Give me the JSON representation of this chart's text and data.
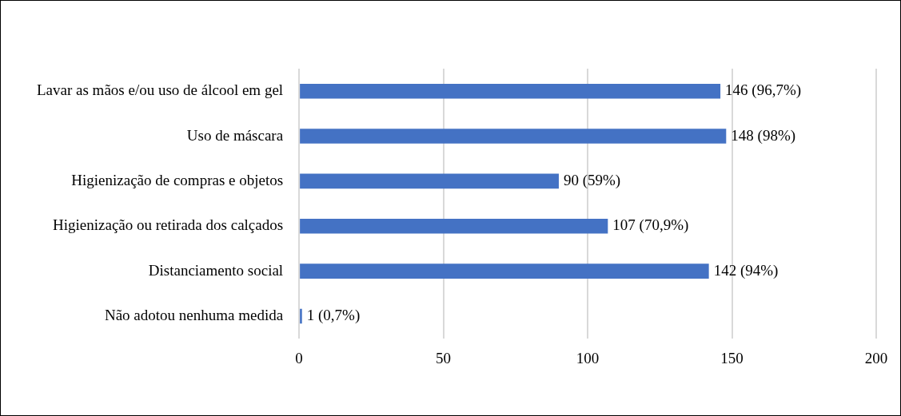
{
  "chart_data": {
    "type": "bar",
    "orientation": "horizontal",
    "categories": [
      "Lavar as mãos e/ou uso de álcool em gel",
      "Uso de máscara",
      "Higienização de compras e objetos",
      "Higienização ou retirada dos calçados",
      "Distanciamento social",
      "Não adotou nenhuma medida"
    ],
    "values": [
      146,
      148,
      90,
      107,
      142,
      1
    ],
    "value_labels": [
      "146 (96,7%)",
      "148 (98%)",
      "90 (59%)",
      "107 (70,9%)",
      "142 (94%)",
      "1 (0,7%)"
    ],
    "color": "#4472c4",
    "xlim": [
      0,
      200
    ],
    "xticks": [
      0,
      50,
      100,
      150,
      200
    ],
    "grid": "x",
    "legend": false
  }
}
